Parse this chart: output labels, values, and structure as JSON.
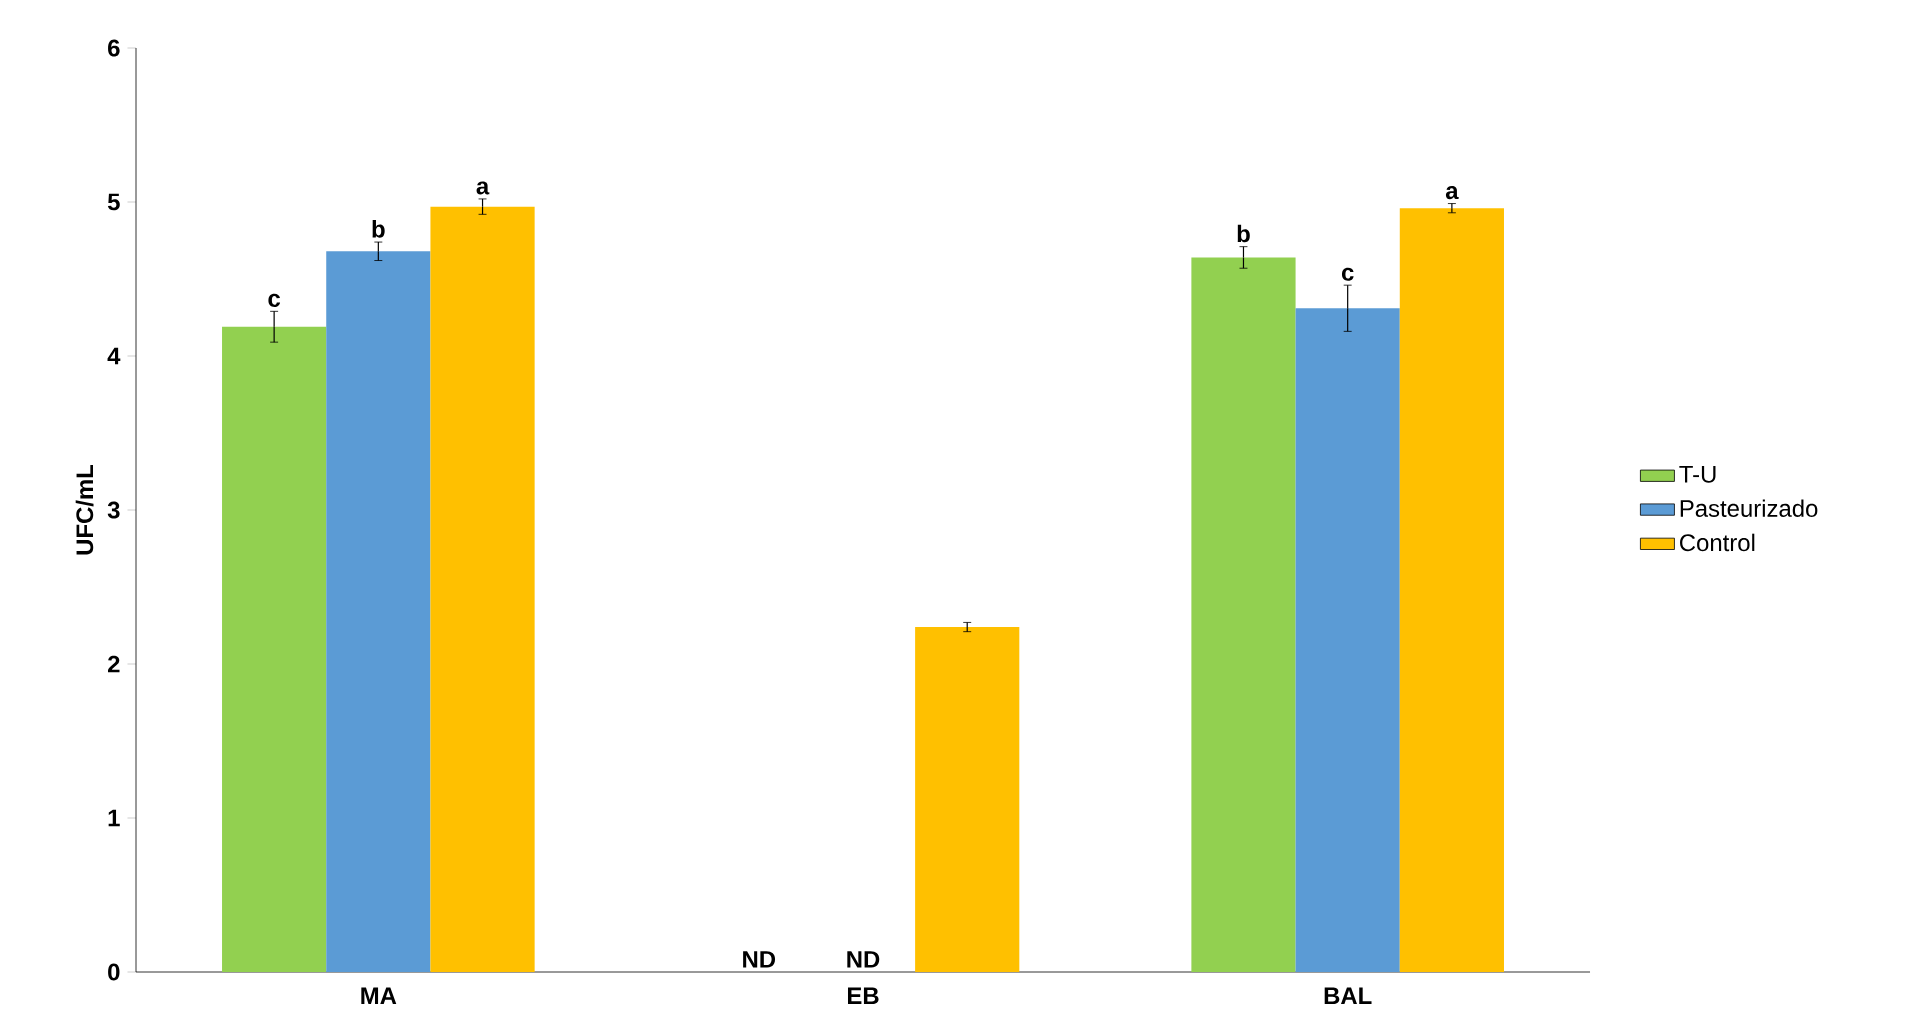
{
  "chart_data": {
    "type": "bar",
    "ylabel": "UFC/mL",
    "categories": [
      "MA",
      "EB",
      "BAL"
    ],
    "series": [
      {
        "name": "T-U",
        "color": "#92d050",
        "values": [
          4.19,
          null,
          4.64
        ],
        "errors": [
          0.1,
          null,
          0.07
        ],
        "value_labels": [
          "c",
          "ND",
          "b"
        ]
      },
      {
        "name": "Pasteurizado",
        "color": "#5b9bd5",
        "values": [
          4.68,
          null,
          4.31
        ],
        "errors": [
          0.06,
          null,
          0.15
        ],
        "value_labels": [
          "b",
          "ND",
          "c"
        ]
      },
      {
        "name": "Control",
        "color": "#ffc000",
        "values": [
          4.97,
          2.24,
          4.96
        ],
        "errors": [
          0.05,
          0.03,
          0.03
        ],
        "value_labels": [
          "a",
          null,
          "a"
        ]
      }
    ],
    "ylim": [
      0,
      6
    ],
    "yticks": [
      0,
      1,
      2,
      3,
      4,
      5,
      6
    ],
    "legend": "right",
    "grid": false
  }
}
